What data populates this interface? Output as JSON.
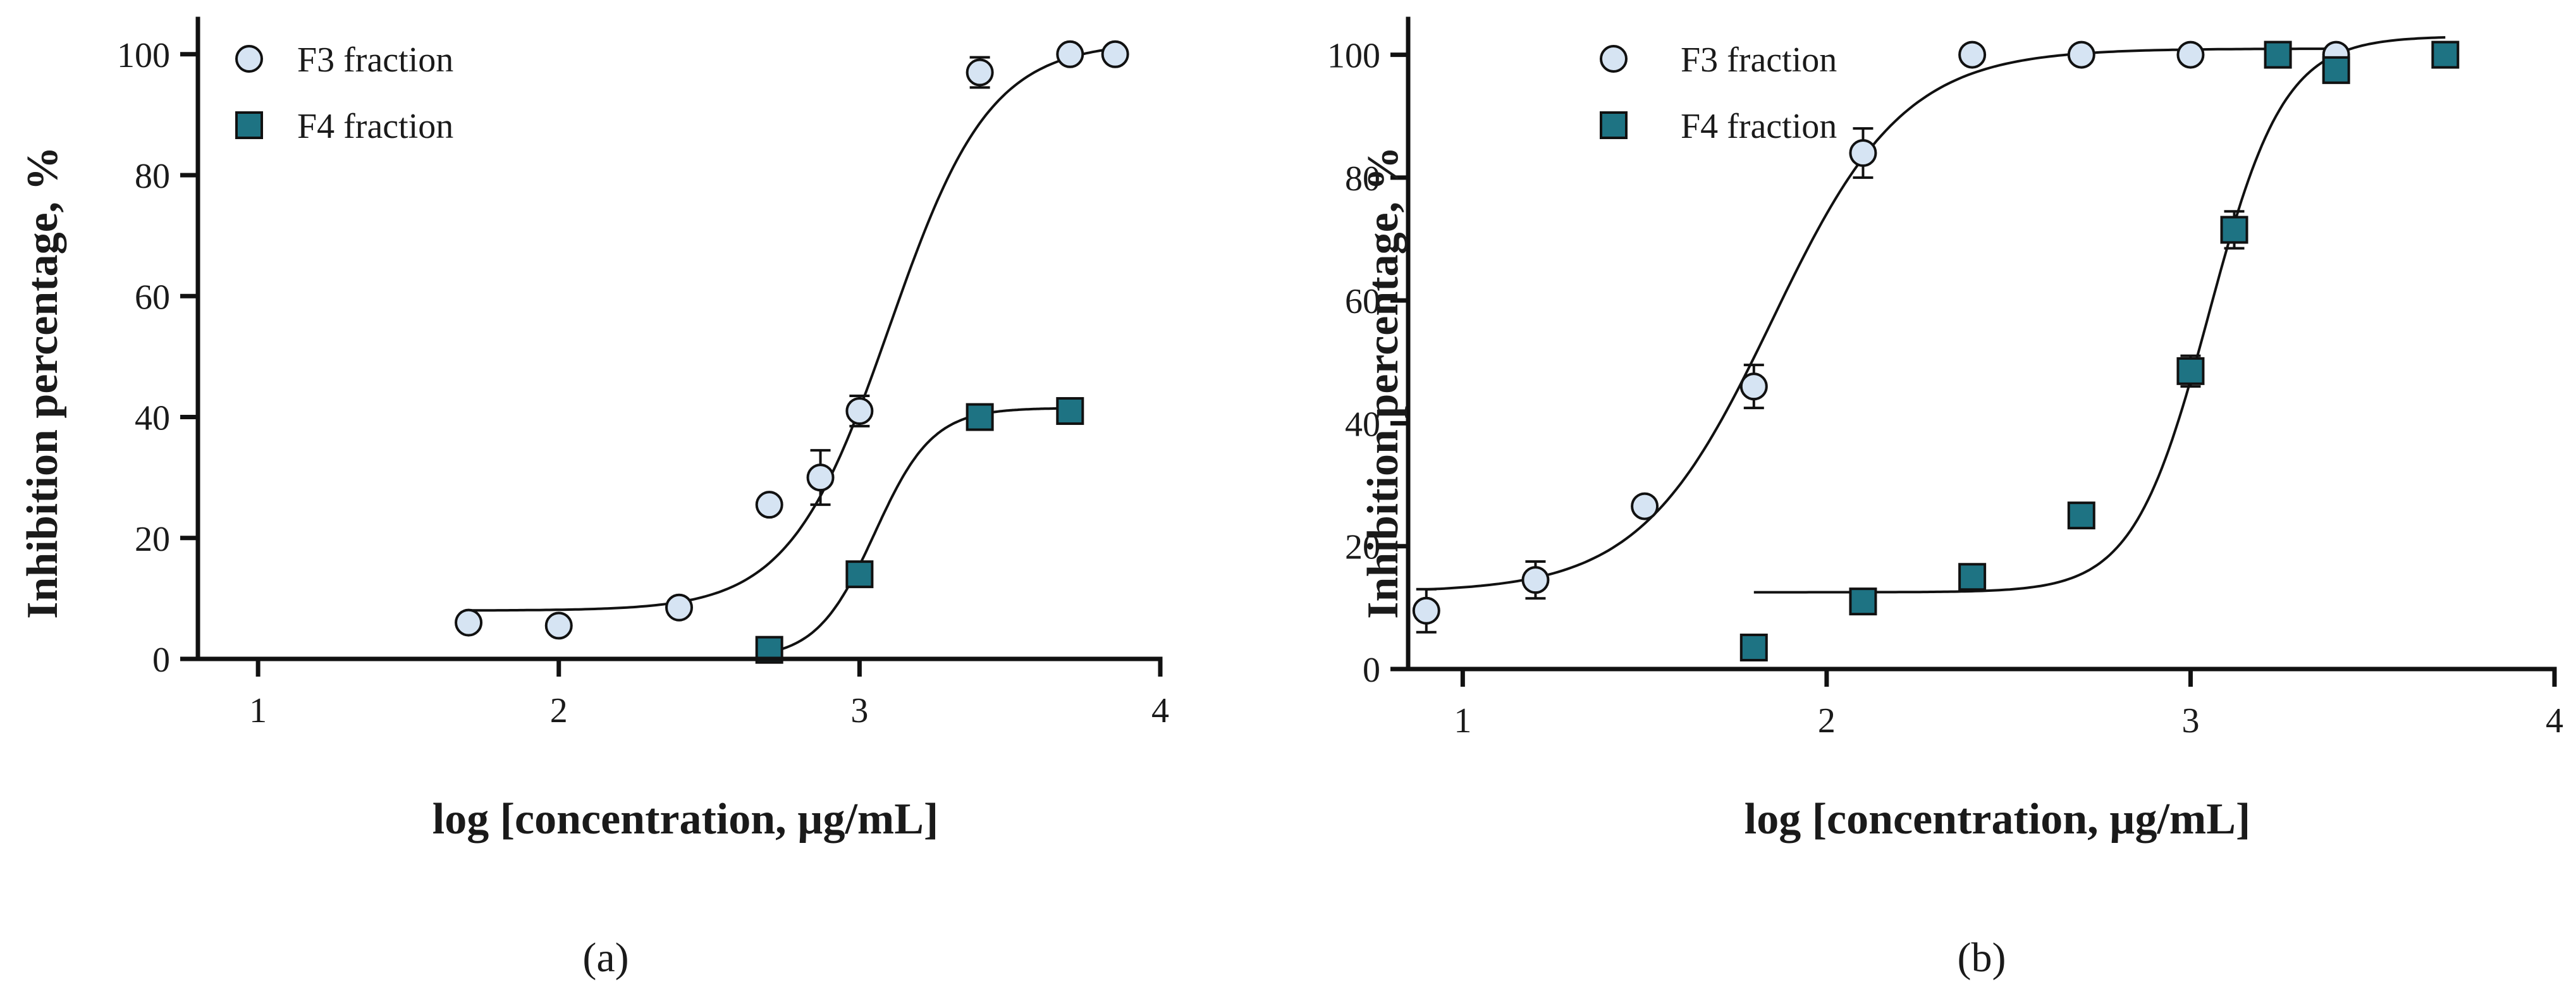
{
  "colors": {
    "f3_fill": "#d6e4f3",
    "f3_stroke": "#111111",
    "f4_fill": "#1e7383",
    "f4_stroke": "#111111",
    "axis": "#111111"
  },
  "chart_data": [
    {
      "type": "scatter",
      "panel_label": "(a)",
      "panel_letter": "a",
      "xlabel": "log [concentration, µg/mL]",
      "ylabel": "Inhibition percentage, %",
      "xlim": [
        0.8,
        4.0
      ],
      "ylim": [
        0,
        105
      ],
      "xticks": [
        1,
        2,
        3,
        4
      ],
      "yticks": [
        0,
        20,
        40,
        60,
        80,
        100
      ],
      "grid": false,
      "legend_position": "top-left",
      "series": [
        {
          "name": "F3 fraction",
          "marker": "circle",
          "x": [
            1.7,
            2.0,
            2.4,
            2.7,
            2.87,
            3.0,
            3.4,
            3.7,
            3.85
          ],
          "y": [
            6,
            5.5,
            8.5,
            25.5,
            30,
            41,
            97,
            100,
            100
          ],
          "err": [
            0,
            0,
            0,
            0,
            4.5,
            2.5,
            2.5,
            0,
            0
          ],
          "fit": {
            "bottom": 8,
            "top": 102,
            "logec50": 3.1,
            "hill": 2.6
          }
        },
        {
          "name": "F4 fraction",
          "marker": "square",
          "x": [
            2.7,
            3.0,
            3.4,
            3.7
          ],
          "y": [
            1.5,
            14,
            40,
            41
          ],
          "err": [
            0,
            0,
            0,
            0
          ],
          "fit": {
            "bottom": 0,
            "top": 41.5,
            "logec50": 3.05,
            "hill": 4.5,
            "xmin": 2.7
          }
        }
      ]
    },
    {
      "type": "scatter",
      "panel_label": "(b)",
      "panel_letter": "b",
      "xlabel": "log [concentration, µg/mL]",
      "ylabel": "Inhibition percentage, %",
      "xlim": [
        0.85,
        4.0
      ],
      "ylim": [
        0,
        105
      ],
      "xticks": [
        1,
        2,
        3,
        4
      ],
      "yticks": [
        0,
        20,
        40,
        60,
        80,
        100
      ],
      "grid": false,
      "legend_position": "top-left",
      "series": [
        {
          "name": "F3 fraction",
          "marker": "circle",
          "x": [
            0.9,
            1.2,
            1.5,
            1.8,
            2.1,
            2.4,
            2.7,
            3.0,
            3.4
          ],
          "y": [
            9.5,
            14.5,
            26.5,
            46,
            84,
            100,
            100,
            100,
            100
          ],
          "err": [
            3.5,
            3,
            0,
            3.5,
            4,
            0,
            0,
            0,
            0
          ],
          "fit": {
            "bottom": 12.5,
            "top": 101,
            "logec50": 1.85,
            "hill": 2.4
          }
        },
        {
          "name": "F4 fraction",
          "marker": "square",
          "x": [
            1.8,
            2.1,
            2.4,
            2.7,
            3.0,
            3.12,
            3.24,
            3.4,
            3.7
          ],
          "y": [
            3.5,
            11,
            15,
            25,
            48.5,
            71.5,
            100,
            97.5,
            100
          ],
          "err": [
            0,
            0,
            0,
            2,
            2.5,
            3,
            0,
            0,
            0
          ],
          "fit": {
            "bottom": 12.5,
            "top": 103,
            "logec50": 3.05,
            "hill": 4.2,
            "xmin": 1.8
          }
        }
      ]
    }
  ]
}
